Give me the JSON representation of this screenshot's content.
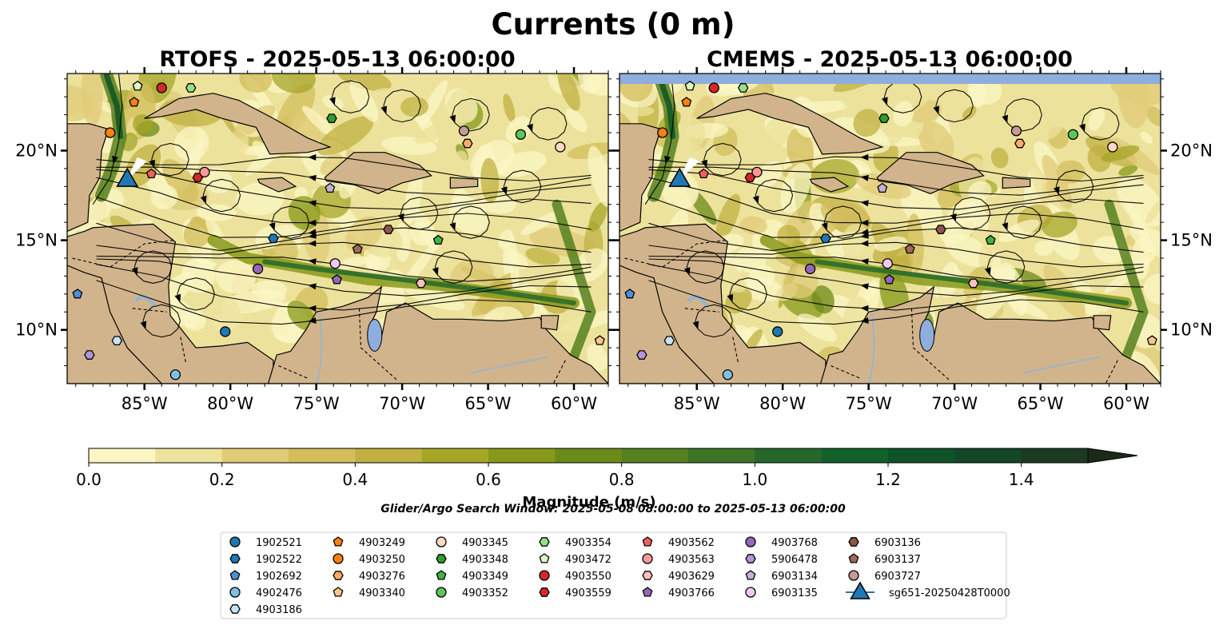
{
  "suptitle": "Currents (0 m)",
  "colors": {
    "land": "#d2b48c",
    "water_gray": "#9db4c6",
    "lake": "#8eaedd",
    "cmap": [
      "#fbf6c4",
      "#ece29b",
      "#e0cb78",
      "#d3bd5c",
      "#c0b042",
      "#a5a628",
      "#87991a",
      "#6c8a1a",
      "#56801f",
      "#3c7525",
      "#25682a",
      "#12602c",
      "#0f5326",
      "#144628",
      "#1c3a22",
      "#1a2a18"
    ]
  },
  "maps": [
    {
      "id": "rtofs",
      "title": "RTOFS - 2025-05-13 06:00:00",
      "lat_labels_side": "left",
      "top_band": false
    },
    {
      "id": "cmems",
      "title": "CMEMS - 2025-05-13 06:00:00",
      "lat_labels_side": "right",
      "top_band": true
    }
  ],
  "axes": {
    "lon_range": [
      -89.5,
      -58
    ],
    "lat_range": [
      7,
      24.3
    ],
    "lon_ticks": [
      {
        "v": -85,
        "label": "85°W"
      },
      {
        "v": -80,
        "label": "80°W"
      },
      {
        "v": -75,
        "label": "75°W"
      },
      {
        "v": -70,
        "label": "70°W"
      },
      {
        "v": -65,
        "label": "65°W"
      },
      {
        "v": -60,
        "label": "60°W"
      }
    ],
    "lat_ticks": [
      {
        "v": 10,
        "label": "10°N"
      },
      {
        "v": 15,
        "label": "15°N"
      },
      {
        "v": 20,
        "label": "20°N"
      }
    ]
  },
  "colorbar": {
    "label": "Magnitude (m/s)",
    "min": 0,
    "max": 1.5,
    "step": 0.1,
    "extend": "max",
    "ticks": [
      {
        "v": 0,
        "label": "0.0"
      },
      {
        "v": 0.2,
        "label": "0.2"
      },
      {
        "v": 0.4,
        "label": "0.4"
      },
      {
        "v": 0.6,
        "label": "0.6"
      },
      {
        "v": 0.8,
        "label": "0.8"
      },
      {
        "v": 1.0,
        "label": "1.0"
      },
      {
        "v": 1.2,
        "label": "1.2"
      },
      {
        "v": 1.4,
        "label": "1.4"
      }
    ]
  },
  "search_window": "Glider/Argo Search Window: 2025-05-08 08:00:00 to 2025-05-13 06:00:00",
  "chart_data": {
    "type": "scatter",
    "title": "Currents (0 m)",
    "subplot_titles": [
      "RTOFS - 2025-05-13 06:00:00",
      "CMEMS - 2025-05-13 06:00:00"
    ],
    "colorbar_label": "Magnitude (m/s)",
    "xlim": [
      -89.5,
      -58
    ],
    "ylim": [
      7,
      24.3
    ],
    "series": [
      {
        "name": "1902521",
        "marker": "circle",
        "color": "#1f77b4",
        "lon": -80.3,
        "lat": 9.9
      },
      {
        "name": "1902522",
        "marker": "hexagon",
        "color": "#1f77b4",
        "lon": -77.5,
        "lat": 15.1
      },
      {
        "name": "1902692",
        "marker": "pentagon",
        "color": "#4b8fd6",
        "lon": -88.9,
        "lat": 12.0
      },
      {
        "name": "4902476",
        "marker": "circle",
        "color": "#7fbfe6",
        "lon": -83.2,
        "lat": 7.5
      },
      {
        "name": "4903186",
        "marker": "hexagon",
        "color": "#c6e4f5",
        "lon": -86.6,
        "lat": 9.4
      },
      {
        "name": "4903249",
        "marker": "pentagon",
        "color": "#ff7f0e",
        "lon": -85.6,
        "lat": 22.7
      },
      {
        "name": "4903250",
        "marker": "circle",
        "color": "#ff7f0e",
        "lon": -87.0,
        "lat": 21.0
      },
      {
        "name": "4903276",
        "marker": "hexagon",
        "color": "#ffaa6a",
        "lon": -66.2,
        "lat": 20.4
      },
      {
        "name": "4903340",
        "marker": "pentagon",
        "color": "#ffc68a",
        "lon": -58.5,
        "lat": 9.4
      },
      {
        "name": "4903345",
        "marker": "circle",
        "color": "#ffd9c0",
        "lon": -60.8,
        "lat": 20.2
      },
      {
        "name": "4903348",
        "marker": "hexagon",
        "color": "#2ca02c",
        "lon": -74.1,
        "lat": 21.8
      },
      {
        "name": "4903349",
        "marker": "pentagon",
        "color": "#44b044",
        "lon": -67.9,
        "lat": 15.0
      },
      {
        "name": "4903352",
        "marker": "circle",
        "color": "#5cc65c",
        "lon": -63.1,
        "lat": 20.9
      },
      {
        "name": "4903354",
        "marker": "hexagon",
        "color": "#98df8a",
        "lon": -82.3,
        "lat": 23.5
      },
      {
        "name": "4903472",
        "marker": "pentagon",
        "color": "#ddf7c8",
        "lon": -85.4,
        "lat": 23.6
      },
      {
        "name": "4903550",
        "marker": "circle",
        "color": "#d62728",
        "lon": -84.0,
        "lat": 23.5
      },
      {
        "name": "4903559",
        "marker": "hexagon",
        "color": "#d62728",
        "lon": -81.9,
        "lat": 18.5
      },
      {
        "name": "4903562",
        "marker": "pentagon",
        "color": "#f06060",
        "lon": -84.6,
        "lat": 18.7
      },
      {
        "name": "4903563",
        "marker": "circle",
        "color": "#ff9896",
        "lon": -81.5,
        "lat": 18.8
      },
      {
        "name": "4903629",
        "marker": "hexagon",
        "color": "#ffc0c0",
        "lon": -68.9,
        "lat": 12.6
      },
      {
        "name": "4903766",
        "marker": "pentagon",
        "color": "#9467bd",
        "lon": -73.8,
        "lat": 12.8
      },
      {
        "name": "4903768",
        "marker": "circle",
        "color": "#9467bd",
        "lon": -78.4,
        "lat": 13.4
      },
      {
        "name": "5906478",
        "marker": "hexagon",
        "color": "#b394d6",
        "lon": -88.2,
        "lat": 8.6
      },
      {
        "name": "6903134",
        "marker": "pentagon",
        "color": "#c5b0d5",
        "lon": -74.2,
        "lat": 17.9
      },
      {
        "name": "6903135",
        "marker": "circle",
        "color": "#f0c8f5",
        "lon": -73.9,
        "lat": 13.7
      },
      {
        "name": "6903136",
        "marker": "hexagon",
        "color": "#8c564b",
        "lon": -70.8,
        "lat": 15.6
      },
      {
        "name": "6903137",
        "marker": "pentagon",
        "color": "#a0695a",
        "lon": -72.6,
        "lat": 14.5
      },
      {
        "name": "6903727",
        "marker": "circle",
        "color": "#c49c94",
        "lon": -66.4,
        "lat": 21.1
      },
      {
        "name": "sg651-20250428T0000",
        "marker": "triangle",
        "color": "#1f77b4",
        "lon": -86.0,
        "lat": 18.4
      }
    ]
  }
}
